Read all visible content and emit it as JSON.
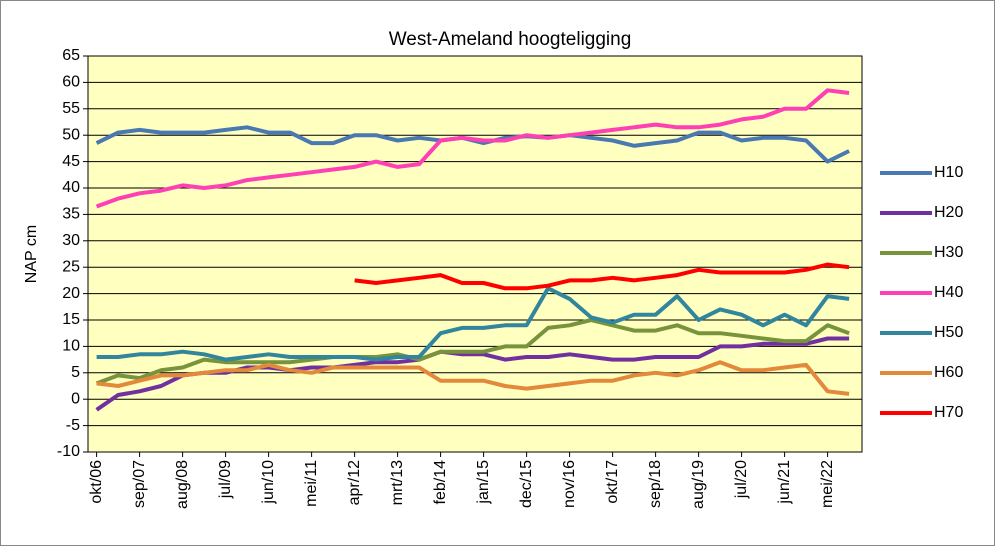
{
  "chart_data": {
    "type": "line",
    "title": "West-Ameland hoogteligging",
    "y_label": "NAP cm",
    "categories": [
      "okt/06",
      null,
      "sep/07",
      null,
      "aug/08",
      null,
      "jul/09",
      null,
      "jun/10",
      null,
      "mei/11",
      null,
      "apr/12",
      null,
      "mrt/13",
      null,
      "feb/14",
      null,
      "jan/15",
      null,
      "dec/15",
      null,
      "nov/16",
      null,
      "okt/17",
      null,
      "sep/18",
      null,
      "aug/19",
      null,
      "jul/20",
      null,
      "jun/21",
      null,
      "mei/22",
      null
    ],
    "series": [
      {
        "name": "H10",
        "color": "#4a78b0",
        "values": [
          48.5,
          50.5,
          51,
          50.5,
          50.5,
          50.5,
          51,
          51.5,
          50.5,
          50.5,
          48.5,
          48.5,
          50,
          50,
          49,
          49.5,
          49,
          49.5,
          48.5,
          49.5,
          49.8,
          49.5,
          50,
          49.5,
          49,
          48,
          48.5,
          49,
          50.5,
          50.5,
          49,
          49.5,
          49.5,
          49,
          45,
          47
        ]
      },
      {
        "name": "H20",
        "color": "#7030a0",
        "values": [
          -2,
          0.8,
          1.5,
          2.5,
          4.5,
          5,
          5,
          6,
          6,
          5.5,
          6,
          6,
          6.5,
          7,
          7,
          7.5,
          9,
          8.5,
          8.5,
          7.5,
          8,
          8,
          8.5,
          8,
          7.5,
          7.5,
          8,
          8,
          8,
          10,
          10,
          10.5,
          10.5,
          10.5,
          11.5,
          11.5
        ]
      },
      {
        "name": "H30",
        "color": "#77933c",
        "values": [
          3,
          4.5,
          4,
          5.5,
          6,
          7.5,
          7,
          7,
          7,
          7,
          7.5,
          8,
          8,
          8,
          8.5,
          7.5,
          9,
          9,
          9,
          10,
          10,
          13.5,
          14,
          15,
          14,
          13,
          13,
          14,
          12.5,
          12.5,
          12,
          11.5,
          11,
          11,
          14,
          12.5
        ]
      },
      {
        "name": "H40",
        "color": "#ff3fb4",
        "values": [
          36.5,
          38,
          39,
          39.5,
          40.5,
          40,
          40.5,
          41.5,
          42,
          42.5,
          43,
          43.5,
          44,
          45,
          44,
          44.5,
          49,
          49.5,
          49,
          49,
          50,
          49.5,
          50,
          50.5,
          51,
          51.5,
          52,
          51.5,
          51.5,
          52,
          53,
          53.5,
          55,
          55,
          58.5,
          58
        ]
      },
      {
        "name": "H50",
        "color": "#31859c",
        "values": [
          8,
          8,
          8.5,
          8.5,
          9,
          8.5,
          7.5,
          8,
          8.5,
          8,
          8,
          8,
          8,
          7.5,
          8,
          8,
          12.5,
          13.5,
          13.5,
          14,
          14,
          21,
          19,
          15.5,
          14.5,
          16,
          16,
          19.5,
          15,
          17,
          16,
          14,
          16,
          14,
          19.5,
          19
        ]
      },
      {
        "name": "H60",
        "color": "#e2893b",
        "values": [
          3,
          2.5,
          3.5,
          4.5,
          4.5,
          5,
          5.5,
          5.5,
          6.5,
          5.5,
          5,
          6,
          6,
          6,
          6,
          6,
          3.5,
          3.5,
          3.5,
          2.5,
          2,
          2.5,
          3,
          3.5,
          3.5,
          4.5,
          5,
          4.5,
          5.5,
          7,
          5.5,
          5.5,
          6,
          6.5,
          1.5,
          1
        ]
      },
      {
        "name": "H70",
        "color": "#ff0000",
        "values": [
          null,
          null,
          null,
          null,
          null,
          null,
          null,
          null,
          null,
          null,
          null,
          null,
          22.5,
          22,
          22.5,
          23,
          23.5,
          22,
          22,
          21,
          21,
          21.5,
          22.5,
          22.5,
          23,
          22.5,
          23,
          23.5,
          24.5,
          24,
          24,
          24,
          24,
          24.5,
          25.5,
          25
        ]
      }
    ],
    "ylim": [
      -10,
      65
    ],
    "yticks": [
      -10,
      -5,
      0,
      5,
      10,
      15,
      20,
      25,
      30,
      35,
      40,
      45,
      50,
      55,
      60,
      65
    ],
    "grid": true,
    "legend": "right",
    "plot_background": "#ffffc0"
  }
}
